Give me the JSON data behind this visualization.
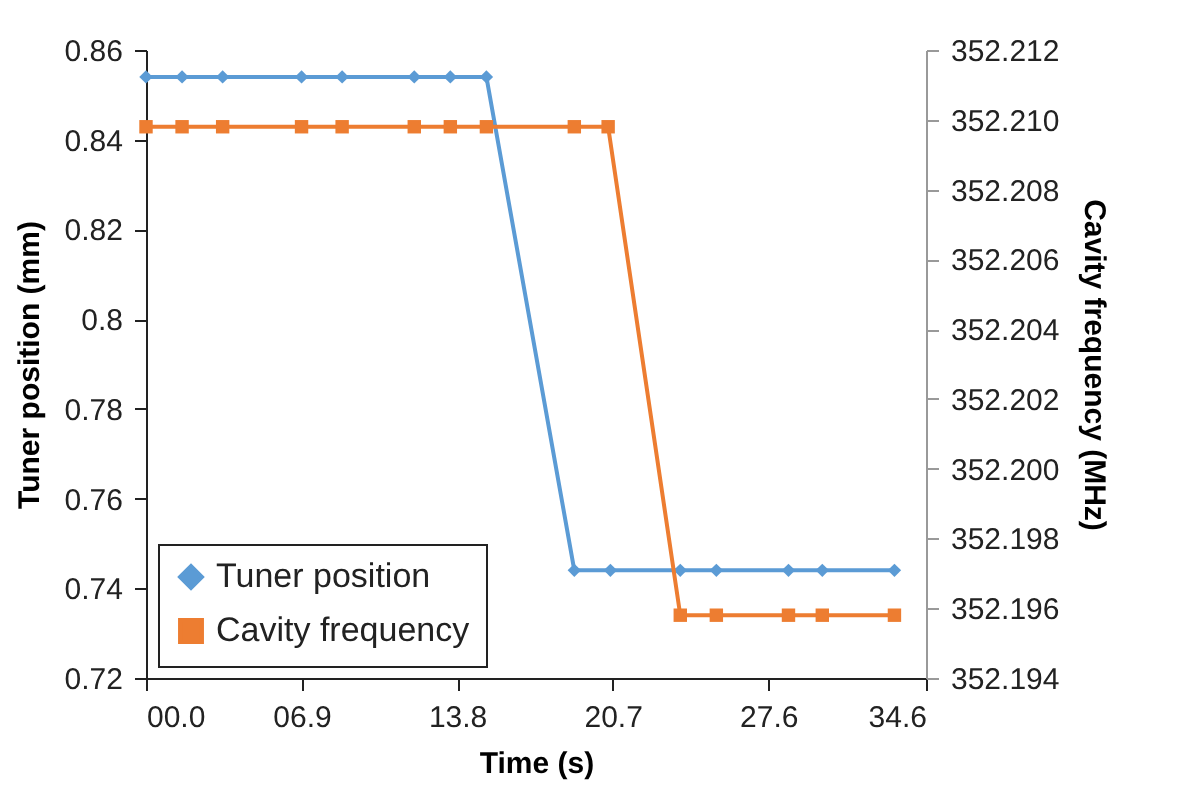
{
  "chart_data": {
    "type": "line",
    "xlabel": "Time (s)",
    "ylabel": "Tuner position (mm)",
    "y2label": "Cavity frequency (MHz)",
    "xlim": [
      0,
      34.6
    ],
    "xticks": [
      {
        "value": 0,
        "label": "00.0"
      },
      {
        "value": 6.9,
        "label": "06.9"
      },
      13.8,
      20.7,
      27.6,
      34.6
    ],
    "ylim": [
      0.72,
      0.86
    ],
    "yticks": [
      0.72,
      0.74,
      0.76,
      0.78,
      0.8,
      0.82,
      0.84,
      0.86
    ],
    "y2lim": [
      352.194,
      352.212
    ],
    "y2ticks": [
      {
        "value": 352.194,
        "label": "352.194"
      },
      {
        "value": 352.196,
        "label": "352.196"
      },
      {
        "value": 352.198,
        "label": "352.198"
      },
      {
        "value": 352.2,
        "label": "352.200"
      },
      {
        "value": 352.202,
        "label": "352.202"
      },
      {
        "value": 352.204,
        "label": "352.204"
      },
      {
        "value": 352.206,
        "label": "352.206"
      },
      {
        "value": 352.208,
        "label": "352.208"
      },
      {
        "value": 352.21,
        "label": "352.210"
      },
      {
        "value": 352.212,
        "label": "352.212"
      }
    ],
    "grid": false,
    "legend": "bottom left",
    "series": [
      {
        "name": "Tuner position",
        "color": "#5b9bd5",
        "marker": "diamond",
        "x": [
          0,
          1.6,
          3.4,
          6.9,
          8.7,
          11.9,
          13.5,
          15.1,
          19.0,
          20.6,
          23.7,
          25.3,
          28.5,
          30.0,
          33.2
        ],
        "values": [
          0.854,
          0.854,
          0.854,
          0.854,
          0.854,
          0.854,
          0.854,
          0.854,
          0.744,
          0.744,
          0.744,
          0.744,
          0.744,
          0.744,
          0.744
        ]
      },
      {
        "name": "Cavity frequency",
        "color": "#ed7d31",
        "marker": "square",
        "axis": "y2",
        "x": [
          0,
          1.6,
          3.4,
          6.9,
          8.7,
          11.9,
          13.5,
          15.1,
          19.0,
          20.5,
          23.7,
          25.3,
          28.5,
          30.0,
          33.2
        ],
        "values": [
          352.2098,
          352.2098,
          352.2098,
          352.2098,
          352.2098,
          352.2098,
          352.2098,
          352.2098,
          352.2098,
          352.2098,
          352.1958,
          352.1958,
          352.1958,
          352.1958,
          352.1958
        ]
      }
    ]
  }
}
